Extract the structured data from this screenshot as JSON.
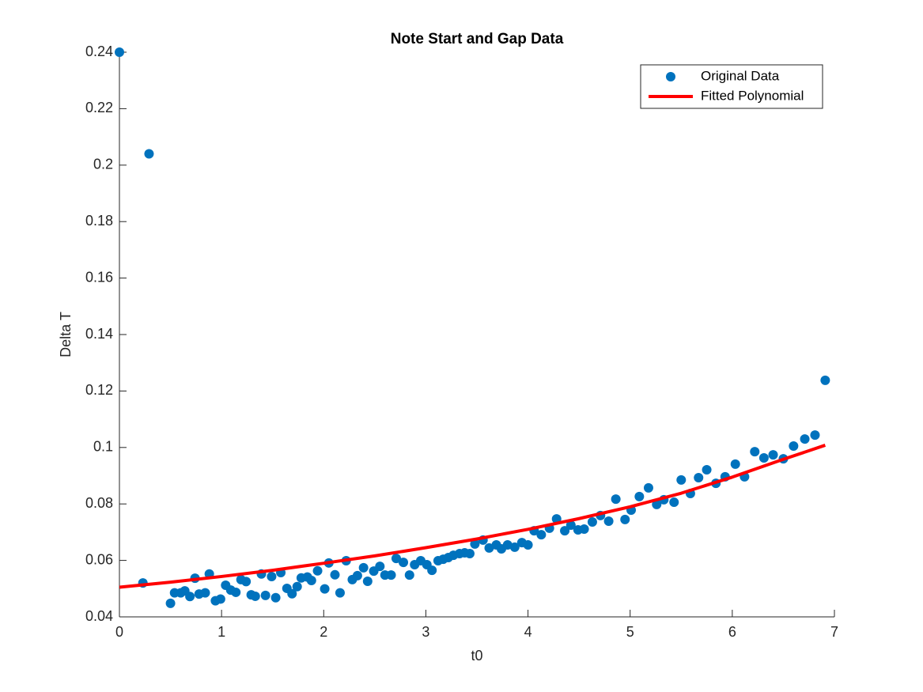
{
  "chart_data": {
    "type": "scatter",
    "title": "Note Start and Gap Data",
    "x_label": "t0",
    "y_label": "Delta T",
    "xlim": [
      0,
      7
    ],
    "ylim": [
      0.04,
      0.24
    ],
    "xticks": [
      0,
      1,
      2,
      3,
      4,
      5,
      6,
      7
    ],
    "yticks": [
      0.04,
      0.06,
      0.08,
      0.1,
      0.12,
      0.14,
      0.16,
      0.18,
      0.2,
      0.22,
      0.24
    ],
    "legend": "top-right",
    "series": [
      {
        "name": "Original Data",
        "type": "scatter",
        "color": "#0072bd",
        "x": [
          0,
          0.29,
          0.23,
          0.5,
          0.54,
          0.6,
          0.64,
          0.69,
          0.74,
          0.78,
          0.84,
          0.88,
          0.94,
          0.99,
          1.04,
          1.09,
          1.14,
          1.19,
          1.24,
          1.29,
          1.33,
          1.39,
          1.43,
          1.49,
          1.53,
          1.58,
          1.64,
          1.69,
          1.74,
          1.78,
          1.84,
          1.88,
          1.94,
          2.01,
          2.05,
          2.11,
          2.16,
          2.22,
          2.28,
          2.33,
          2.39,
          2.43,
          2.49,
          2.55,
          2.6,
          2.66,
          2.71,
          2.78,
          2.84,
          2.89,
          2.95,
          3.01,
          3.06,
          3.12,
          3.17,
          3.22,
          3.27,
          3.33,
          3.38,
          3.43,
          3.48,
          3.56,
          3.62,
          3.69,
          3.74,
          3.8,
          3.87,
          3.94,
          4.0,
          4.06,
          4.13,
          4.21,
          4.28,
          4.36,
          4.42,
          4.49,
          4.55,
          4.63,
          4.71,
          4.79,
          4.86,
          4.95,
          5.01,
          5.09,
          5.18,
          5.26,
          5.33,
          5.43,
          5.5,
          5.59,
          5.67,
          5.75,
          5.84,
          5.93,
          6.03,
          6.12,
          6.22,
          6.31,
          6.4,
          6.5,
          6.6,
          6.71,
          6.81,
          6.91
        ],
        "values": [
          0.24,
          0.204,
          0.052,
          0.0448,
          0.0485,
          0.0485,
          0.0492,
          0.0472,
          0.0537,
          0.0481,
          0.0485,
          0.0552,
          0.0457,
          0.0463,
          0.0512,
          0.0495,
          0.0487,
          0.0532,
          0.0525,
          0.0478,
          0.0473,
          0.0552,
          0.0476,
          0.0543,
          0.0468,
          0.0557,
          0.0501,
          0.0482,
          0.0507,
          0.0538,
          0.0541,
          0.0529,
          0.0563,
          0.0499,
          0.0591,
          0.0549,
          0.0485,
          0.0599,
          0.0532,
          0.0546,
          0.0574,
          0.0526,
          0.0562,
          0.0579,
          0.0548,
          0.0548,
          0.0607,
          0.0593,
          0.0548,
          0.0585,
          0.0599,
          0.0585,
          0.0565,
          0.0599,
          0.0604,
          0.061,
          0.0618,
          0.0624,
          0.0627,
          0.0624,
          0.0658,
          0.0672,
          0.0644,
          0.0655,
          0.0641,
          0.0655,
          0.0647,
          0.0663,
          0.0655,
          0.0705,
          0.0691,
          0.0714,
          0.0747,
          0.0705,
          0.0725,
          0.0708,
          0.0711,
          0.0736,
          0.0759,
          0.0739,
          0.0817,
          0.0745,
          0.0778,
          0.0826,
          0.0857,
          0.0798,
          0.0815,
          0.0806,
          0.0885,
          0.0837,
          0.0893,
          0.0921,
          0.0873,
          0.0896,
          0.0941,
          0.0896,
          0.0985,
          0.0963,
          0.0974,
          0.096,
          0.1005,
          0.103,
          0.1044,
          0.1238
        ]
      },
      {
        "name": "Fitted Polynomial",
        "type": "line",
        "color": "#ff0000",
        "x": [
          0,
          0.5,
          1,
          1.5,
          2,
          2.5,
          3,
          3.5,
          4,
          4.5,
          5,
          5.5,
          6,
          6.5,
          6.91
        ],
        "values": [
          0.0505,
          0.0523,
          0.0543,
          0.0565,
          0.059,
          0.0616,
          0.0645,
          0.0676,
          0.071,
          0.0748,
          0.079,
          0.0838,
          0.0895,
          0.0958,
          0.1008
        ]
      }
    ]
  }
}
